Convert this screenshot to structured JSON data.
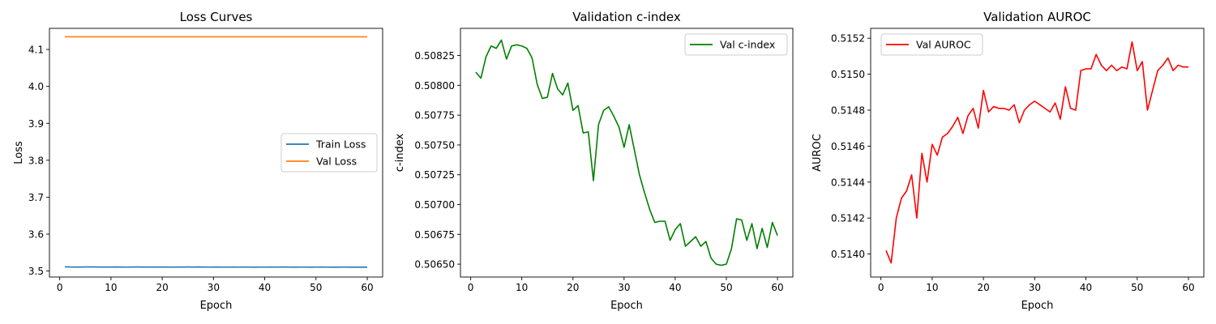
{
  "chart_data": [
    {
      "type": "line",
      "title": "Loss Curves",
      "xlabel": "Epoch",
      "ylabel": "Loss",
      "xlim": [
        -2,
        63
      ],
      "ylim": [
        3.4838,
        4.1572
      ],
      "xticks": [
        0,
        10,
        20,
        30,
        40,
        50,
        60
      ],
      "xtick_labels": [
        "0",
        "10",
        "20",
        "30",
        "40",
        "50",
        "60"
      ],
      "yticks": [
        3.5,
        3.6,
        3.7,
        3.8,
        3.9,
        4.0,
        4.1
      ],
      "ytick_labels": [
        "3.5",
        "3.6",
        "3.7",
        "3.8",
        "3.9",
        "4.0",
        "4.1"
      ],
      "legend_position": "center-right",
      "x": [
        1,
        2,
        3,
        4,
        5,
        6,
        7,
        8,
        9,
        10,
        11,
        12,
        13,
        14,
        15,
        16,
        17,
        18,
        19,
        20,
        21,
        22,
        23,
        24,
        25,
        26,
        27,
        28,
        29,
        30,
        31,
        32,
        33,
        34,
        35,
        36,
        37,
        38,
        39,
        40,
        41,
        42,
        43,
        44,
        45,
        46,
        47,
        48,
        49,
        50,
        51,
        52,
        53,
        54,
        55,
        56,
        57,
        58,
        59,
        60
      ],
      "series": [
        {
          "name": "Train Loss",
          "color": "#1f77b4",
          "values": [
            3.5115,
            3.511,
            3.5108,
            3.5109,
            3.511,
            3.5111,
            3.511,
            3.5109,
            3.5108,
            3.5109,
            3.511,
            3.5108,
            3.5107,
            3.5109,
            3.511,
            3.5109,
            3.5108,
            3.5109,
            3.5108,
            3.5109,
            3.5108,
            3.5107,
            3.5108,
            3.5109,
            3.511,
            3.5109,
            3.511,
            3.5108,
            3.5107,
            3.5108,
            3.5108,
            3.5107,
            3.5107,
            3.5108,
            3.5107,
            3.5108,
            3.5107,
            3.5106,
            3.5107,
            3.5107,
            3.5108,
            3.5107,
            3.5108,
            3.5109,
            3.5107,
            3.5106,
            3.5107,
            3.5107,
            3.5106,
            3.5107,
            3.5108,
            3.5107,
            3.5106,
            3.5106,
            3.5107,
            3.5107,
            3.5106,
            3.5106,
            3.5106,
            3.5106
          ]
        },
        {
          "name": "Val Loss",
          "color": "#ff7f0e",
          "values": [
            4.1345,
            4.1343,
            4.1344,
            4.1343,
            4.1344,
            4.1343,
            4.1344,
            4.1343,
            4.1344,
            4.1343,
            4.1344,
            4.1343,
            4.1344,
            4.1343,
            4.1344,
            4.1343,
            4.1344,
            4.1343,
            4.1344,
            4.1343,
            4.1344,
            4.1343,
            4.1344,
            4.1343,
            4.1344,
            4.1343,
            4.1344,
            4.1343,
            4.1344,
            4.1343,
            4.1344,
            4.1343,
            4.1344,
            4.1343,
            4.1344,
            4.1343,
            4.1344,
            4.1343,
            4.1344,
            4.1343,
            4.1344,
            4.1343,
            4.1344,
            4.1343,
            4.1344,
            4.1343,
            4.1344,
            4.1343,
            4.1344,
            4.1343,
            4.1344,
            4.1343,
            4.1344,
            4.1343,
            4.1344,
            4.1343,
            4.1344,
            4.1343,
            4.1344,
            4.1343
          ]
        }
      ]
    },
    {
      "type": "line",
      "title": "Validation c-index",
      "xlabel": "Epoch",
      "ylabel": "c-index",
      "xlim": [
        -2,
        63
      ],
      "ylim": [
        0.506392,
        0.508478
      ],
      "xticks": [
        0,
        10,
        20,
        30,
        40,
        50,
        60
      ],
      "xtick_labels": [
        "0",
        "10",
        "20",
        "30",
        "40",
        "50",
        "60"
      ],
      "yticks": [
        0.5065,
        0.50675,
        0.507,
        0.50725,
        0.5075,
        0.50775,
        0.508,
        0.50825
      ],
      "ytick_labels": [
        "0.50650",
        "0.50675",
        "0.50700",
        "0.50725",
        "0.50750",
        "0.50775",
        "0.50800",
        "0.50825"
      ],
      "legend_position": "top-right",
      "x": [
        1,
        2,
        3,
        4,
        5,
        6,
        7,
        8,
        9,
        10,
        11,
        12,
        13,
        14,
        15,
        16,
        17,
        18,
        19,
        20,
        21,
        22,
        23,
        24,
        25,
        26,
        27,
        28,
        29,
        30,
        31,
        32,
        33,
        34,
        35,
        36,
        37,
        38,
        39,
        40,
        41,
        42,
        43,
        44,
        45,
        46,
        47,
        48,
        49,
        50,
        51,
        52,
        53,
        54,
        55,
        56,
        57,
        58,
        59,
        60
      ],
      "series": [
        {
          "name": "Val c-index",
          "color": "#008000",
          "values": [
            0.50811,
            0.50806,
            0.50824,
            0.50833,
            0.50831,
            0.50838,
            0.50822,
            0.50833,
            0.50834,
            0.50833,
            0.50831,
            0.50823,
            0.50801,
            0.50789,
            0.5079,
            0.5081,
            0.50797,
            0.50792,
            0.50802,
            0.50779,
            0.50783,
            0.5076,
            0.50761,
            0.5072,
            0.50767,
            0.50779,
            0.50782,
            0.50774,
            0.50765,
            0.50748,
            0.50767,
            0.50746,
            0.50725,
            0.5071,
            0.50696,
            0.50685,
            0.50686,
            0.50686,
            0.5067,
            0.50679,
            0.50684,
            0.50665,
            0.50669,
            0.50673,
            0.50665,
            0.50669,
            0.50655,
            0.5065,
            0.50649,
            0.5065,
            0.50663,
            0.50688,
            0.50687,
            0.5067,
            0.50684,
            0.50663,
            0.5068,
            0.50664,
            0.50685,
            0.50674
          ]
        }
      ]
    },
    {
      "type": "line",
      "title": "Validation AUROC",
      "xlabel": "Epoch",
      "ylabel": "AUROC",
      "xlim": [
        -2,
        63
      ],
      "ylim": [
        0.513872,
        0.515255
      ],
      "xticks": [
        0,
        10,
        20,
        30,
        40,
        50,
        60
      ],
      "xtick_labels": [
        "0",
        "10",
        "20",
        "30",
        "40",
        "50",
        "60"
      ],
      "yticks": [
        0.514,
        0.5142,
        0.5144,
        0.5146,
        0.5148,
        0.515,
        0.5152
      ],
      "ytick_labels": [
        "0.5140",
        "0.5142",
        "0.5144",
        "0.5146",
        "0.5148",
        "0.5150",
        "0.5152"
      ],
      "legend_position": "top-left",
      "x": [
        1,
        2,
        3,
        4,
        5,
        6,
        7,
        8,
        9,
        10,
        11,
        12,
        13,
        14,
        15,
        16,
        17,
        18,
        19,
        20,
        21,
        22,
        23,
        24,
        25,
        26,
        27,
        28,
        29,
        30,
        31,
        32,
        33,
        34,
        35,
        36,
        37,
        38,
        39,
        40,
        41,
        42,
        43,
        44,
        45,
        46,
        47,
        48,
        49,
        50,
        51,
        52,
        53,
        54,
        55,
        56,
        57,
        58,
        59,
        60
      ],
      "series": [
        {
          "name": "Val AUROC",
          "color": "#ff0000",
          "values": [
            0.51402,
            0.51395,
            0.5142,
            0.51431,
            0.51435,
            0.51444,
            0.5142,
            0.51456,
            0.5144,
            0.51461,
            0.51455,
            0.51465,
            0.51467,
            0.51471,
            0.51476,
            0.51467,
            0.51477,
            0.51481,
            0.5147,
            0.51491,
            0.51479,
            0.51482,
            0.51481,
            0.51481,
            0.5148,
            0.51483,
            0.51473,
            0.5148,
            0.51483,
            0.51485,
            0.51483,
            0.51481,
            0.51479,
            0.51484,
            0.51475,
            0.51493,
            0.51481,
            0.5148,
            0.51502,
            0.51503,
            0.51503,
            0.51511,
            0.51505,
            0.51502,
            0.51505,
            0.51502,
            0.51504,
            0.51503,
            0.51518,
            0.51502,
            0.51507,
            0.5148,
            0.51491,
            0.51502,
            0.51505,
            0.51509,
            0.51502,
            0.51505,
            0.51504,
            0.51504
          ]
        }
      ]
    }
  ]
}
